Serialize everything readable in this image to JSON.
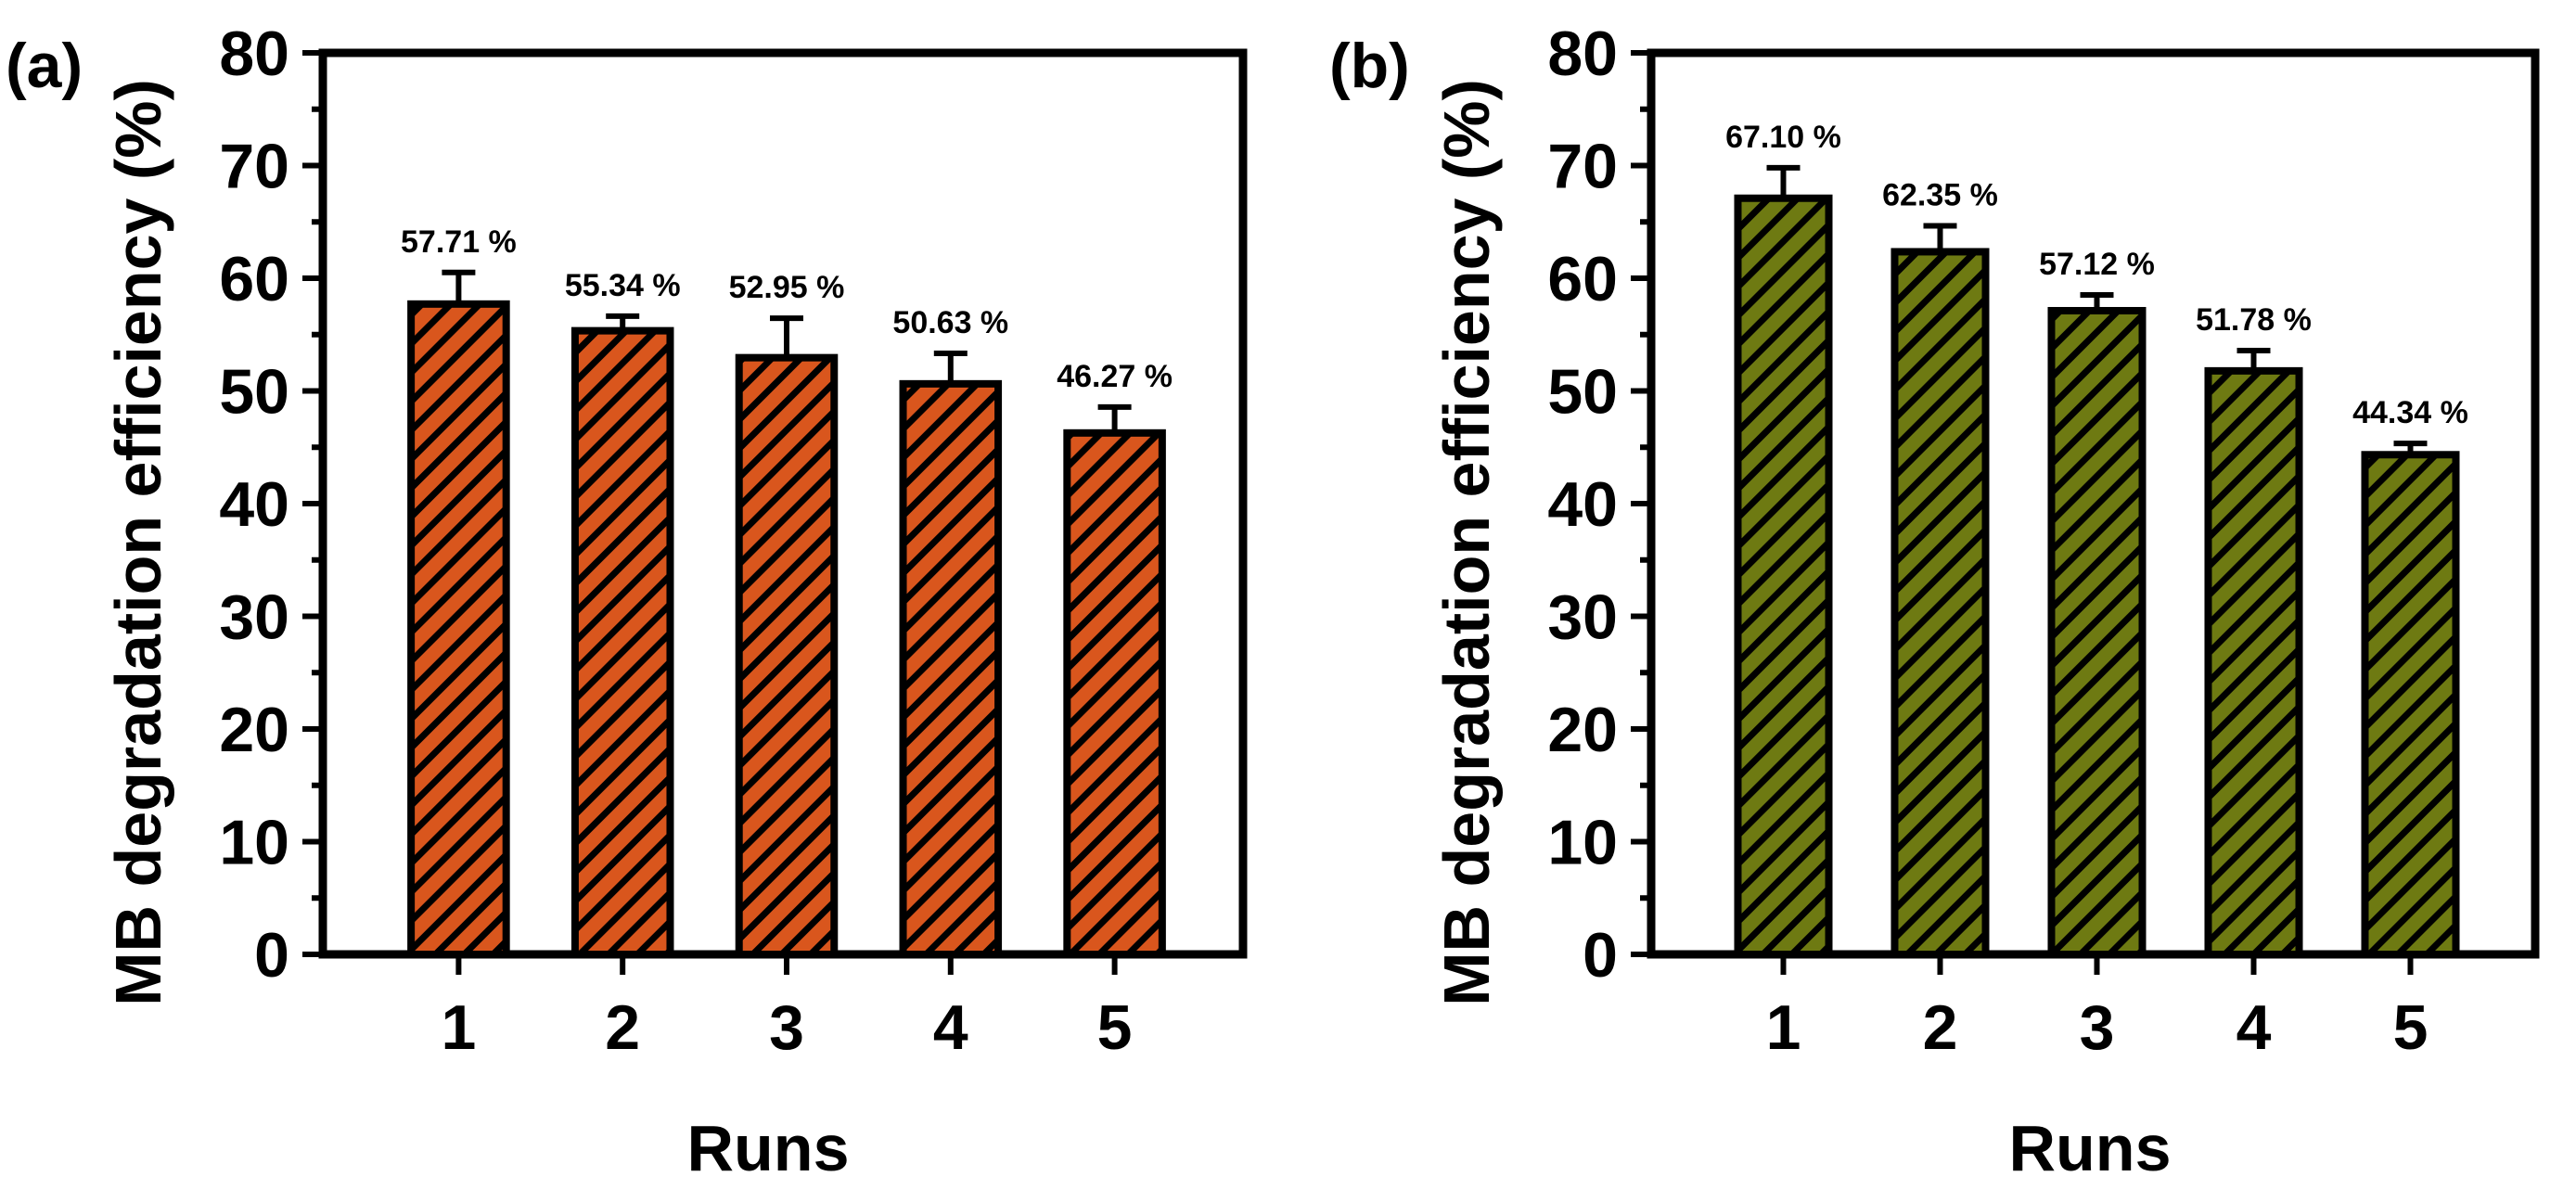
{
  "chart_data": [
    {
      "panel": "(a)",
      "type": "bar",
      "categories": [
        "1",
        "2",
        "3",
        "4",
        "5"
      ],
      "values": [
        57.71,
        55.34,
        52.95,
        50.63,
        46.27
      ],
      "errors": [
        2.8,
        1.3,
        3.5,
        2.7,
        2.3
      ],
      "data_labels": [
        "57.71 %",
        "55.34 %",
        "52.95 %",
        "50.63 %",
        "46.27 %"
      ],
      "xlabel": "Runs",
      "ylabel": "MB degradation efficiency (%)",
      "ylim": [
        0,
        80
      ],
      "yticks": [
        "0",
        "10",
        "20",
        "30",
        "40",
        "50",
        "60",
        "70",
        "80"
      ],
      "bar_color": "#d9561d",
      "hatch_color": "#000000"
    },
    {
      "panel": "(b)",
      "type": "bar",
      "categories": [
        "1",
        "2",
        "3",
        "4",
        "5"
      ],
      "values": [
        67.1,
        62.35,
        57.12,
        51.78,
        44.34
      ],
      "errors": [
        2.7,
        2.3,
        1.4,
        1.8,
        1.0
      ],
      "data_labels": [
        "67.10 %",
        "62.35 %",
        "57.12 %",
        "51.78 %",
        "44.34 %"
      ],
      "xlabel": "Runs",
      "ylabel": "MB degradation efficiency (%)",
      "ylim": [
        0,
        80
      ],
      "yticks": [
        "0",
        "10",
        "20",
        "30",
        "40",
        "50",
        "60",
        "70",
        "80"
      ],
      "bar_color": "#6e7a12",
      "hatch_color": "#000000"
    }
  ]
}
